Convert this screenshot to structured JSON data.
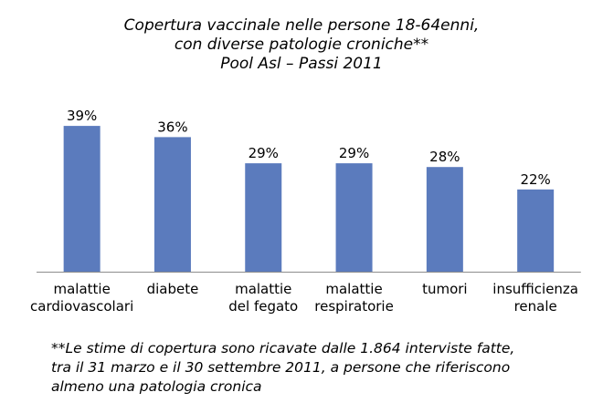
{
  "chart_data": {
    "type": "bar",
    "title_lines": [
      "Copertura vaccinale nelle persone 18-64enni,",
      "con diverse patologie croniche**",
      "Pool Asl – Passi 2011"
    ],
    "categories": [
      [
        "malattie",
        "cardiovascolari"
      ],
      [
        "diabete"
      ],
      [
        "malattie",
        "del fegato"
      ],
      [
        "malattie",
        "respiratorie"
      ],
      [
        "tumori"
      ],
      [
        "insufficienza",
        "renale"
      ]
    ],
    "values": [
      39,
      36,
      29,
      29,
      28,
      22
    ],
    "value_labels": [
      "39%",
      "36%",
      "29%",
      "29%",
      "28%",
      "22%"
    ],
    "ylim": [
      0,
      50
    ],
    "bar_color": "#5b7bbd",
    "axis_color": "#8c8c8c",
    "grid": false,
    "legend": "none",
    "note_lines": [
      "**Le stime di copertura sono ricavate dalle 1.864 interviste fatte,",
      "tra il 31 marzo e il 30 settembre 2011, a persone che riferiscono",
      "almeno una patologia cronica"
    ]
  }
}
